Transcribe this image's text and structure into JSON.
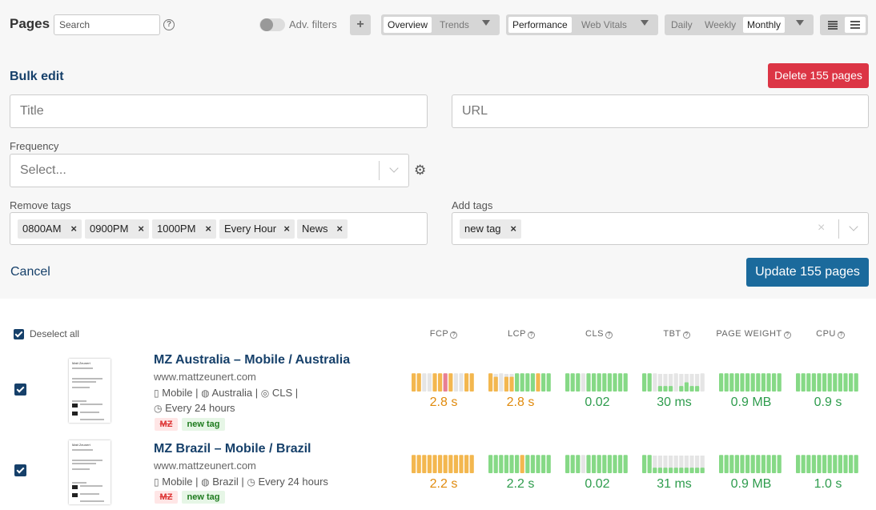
{
  "header": {
    "title": "Pages",
    "search_placeholder": "Search",
    "help_glyph": "?",
    "adv_filters_label": "Adv. filters",
    "add_glyph": "+",
    "view_tabs": [
      "Overview",
      "Trends"
    ],
    "metric_tabs": [
      "Performance",
      "Web Vitals"
    ],
    "period_tabs": [
      "Daily",
      "Weekly",
      "Monthly"
    ],
    "active": {
      "view": "Overview",
      "metric": "Performance",
      "period": "Monthly"
    }
  },
  "bulk_edit": {
    "title": "Bulk edit",
    "delete_label": "Delete 155 pages",
    "title_placeholder": "Title",
    "url_placeholder": "URL",
    "frequency_label": "Frequency",
    "frequency_placeholder": "Select...",
    "remove_tags_label": "Remove tags",
    "remove_tags": [
      "0800AM",
      "0900PM",
      "1000PM",
      "Every Hour",
      "News"
    ],
    "add_tags_label": "Add tags",
    "add_tags": [
      "new tag"
    ],
    "remove_glyph": "×",
    "cancel_label": "Cancel",
    "update_label": "Update 155 pages"
  },
  "list": {
    "deselect_label": "Deselect all",
    "columns": [
      "FCP",
      "LCP",
      "CLS",
      "TBT",
      "PAGE WEIGHT",
      "CPU"
    ],
    "colors": {
      "good": "#86d986",
      "warn": "#f3b74f",
      "bad": "#e87f92",
      "empty": "#e5e5e5",
      "good_text": "#2e9c4d",
      "warn_text": "#e08a0c"
    },
    "pages": [
      {
        "name": "MZ Australia – Mobile / Australia",
        "url": "www.mattzeunert.com",
        "device": "Mobile",
        "location": "Australia",
        "extra": "CLS",
        "frequency": "Every 24 hours",
        "badges": [
          "MZ",
          "new tag"
        ],
        "metrics": [
          {
            "value": "2.8 s",
            "status": "warn",
            "bars": [
              [
                "warn",
                0.9
              ],
              [
                "warn",
                0.9
              ],
              [
                "empty",
                0.9
              ],
              [
                "empty",
                0.9
              ],
              [
                "warn",
                0.9
              ],
              [
                "warn",
                0.9
              ],
              [
                "bad",
                0.9
              ],
              [
                "warn",
                0.9
              ],
              [
                "empty",
                0.9
              ],
              [
                "empty",
                0.9
              ],
              [
                "warn",
                0.9
              ],
              [
                "warn",
                0.9
              ]
            ]
          },
          {
            "value": "2.8 s",
            "status": "warn",
            "bars": [
              [
                "warn",
                0.9
              ],
              [
                "warn",
                0.8
              ],
              [
                "empty",
                0.9
              ],
              [
                "warn",
                0.8
              ],
              [
                "warn",
                0.8
              ],
              [
                "good",
                0.9
              ],
              [
                "good",
                0.9
              ],
              [
                "good",
                0.9
              ],
              [
                "good",
                0.9
              ],
              [
                "warn",
                0.9
              ],
              [
                "good",
                0.9
              ],
              [
                "good",
                0.9
              ]
            ]
          },
          {
            "value": "0.02",
            "status": "good",
            "bars": [
              [
                "good",
                0.9
              ],
              [
                "good",
                0.9
              ],
              [
                "good",
                0.9
              ],
              [
                "empty",
                0.9
              ],
              [
                "good",
                0.9
              ],
              [
                "good",
                0.9
              ],
              [
                "good",
                0.9
              ],
              [
                "good",
                0.9
              ],
              [
                "good",
                0.9
              ],
              [
                "good",
                0.9
              ],
              [
                "good",
                0.9
              ],
              [
                "good",
                0.9
              ]
            ]
          },
          {
            "value": "30 ms",
            "status": "good",
            "bars": [
              [
                "good",
                0.9
              ],
              [
                "good",
                0.9
              ],
              [
                "empty",
                0.9
              ],
              [
                "good",
                0.3
              ],
              [
                "good",
                0.3
              ],
              [
                "good",
                0.3
              ],
              [
                "empty",
                0.9
              ],
              [
                "good",
                0.3
              ],
              [
                "good",
                0.5
              ],
              [
                "good",
                0.3
              ],
              [
                "good",
                0.3
              ],
              [
                "empty",
                0.9
              ]
            ]
          },
          {
            "value": "0.9 MB",
            "status": "good",
            "bars": [
              [
                "good",
                0.9
              ],
              [
                "good",
                0.9
              ],
              [
                "good",
                0.9
              ],
              [
                "good",
                0.9
              ],
              [
                "good",
                0.9
              ],
              [
                "good",
                0.9
              ],
              [
                "good",
                0.9
              ],
              [
                "good",
                0.9
              ],
              [
                "good",
                0.9
              ],
              [
                "good",
                0.9
              ],
              [
                "good",
                0.9
              ],
              [
                "good",
                0.9
              ]
            ]
          },
          {
            "value": "0.9 s",
            "status": "good",
            "bars": [
              [
                "good",
                0.9
              ],
              [
                "good",
                0.9
              ],
              [
                "good",
                0.9
              ],
              [
                "good",
                0.9
              ],
              [
                "good",
                0.9
              ],
              [
                "good",
                0.9
              ],
              [
                "good",
                0.9
              ],
              [
                "good",
                0.9
              ],
              [
                "good",
                0.9
              ],
              [
                "good",
                0.9
              ],
              [
                "good",
                0.9
              ],
              [
                "good",
                0.9
              ]
            ]
          }
        ],
        "thumb_title": "Matt Zeunert"
      },
      {
        "name": "MZ Brazil – Mobile / Brazil",
        "url": "www.mattzeunert.com",
        "device": "Mobile",
        "location": "Brazil",
        "frequency": "Every 24 hours",
        "badges": [
          "MZ",
          "new tag"
        ],
        "metrics": [
          {
            "value": "2.2 s",
            "status": "warn",
            "bars": [
              [
                "warn",
                0.9
              ],
              [
                "warn",
                0.9
              ],
              [
                "warn",
                0.9
              ],
              [
                "warn",
                0.9
              ],
              [
                "warn",
                0.9
              ],
              [
                "warn",
                0.9
              ],
              [
                "warn",
                0.9
              ],
              [
                "warn",
                0.9
              ],
              [
                "warn",
                0.9
              ],
              [
                "warn",
                0.9
              ],
              [
                "warn",
                0.9
              ],
              [
                "warn",
                0.9
              ]
            ]
          },
          {
            "value": "2.2 s",
            "status": "good",
            "bars": [
              [
                "good",
                0.9
              ],
              [
                "good",
                0.9
              ],
              [
                "good",
                0.9
              ],
              [
                "good",
                0.9
              ],
              [
                "good",
                0.9
              ],
              [
                "good",
                0.9
              ],
              [
                "warn",
                0.9
              ],
              [
                "good",
                0.9
              ],
              [
                "good",
                0.9
              ],
              [
                "good",
                0.9
              ],
              [
                "good",
                0.9
              ],
              [
                "good",
                0.9
              ]
            ]
          },
          {
            "value": "0.02",
            "status": "good",
            "bars": [
              [
                "good",
                0.9
              ],
              [
                "good",
                0.9
              ],
              [
                "good",
                0.9
              ],
              [
                "empty",
                0.9
              ],
              [
                "good",
                0.9
              ],
              [
                "good",
                0.9
              ],
              [
                "good",
                0.9
              ],
              [
                "good",
                0.9
              ],
              [
                "good",
                0.9
              ],
              [
                "good",
                0.9
              ],
              [
                "good",
                0.9
              ],
              [
                "good",
                0.9
              ]
            ]
          },
          {
            "value": "31 ms",
            "status": "good",
            "bars": [
              [
                "good",
                0.9
              ],
              [
                "good",
                0.9
              ],
              [
                "good",
                0.3
              ],
              [
                "good",
                0.3
              ],
              [
                "good",
                0.3
              ],
              [
                "good",
                0.3
              ],
              [
                "good",
                0.3
              ],
              [
                "good",
                0.3
              ],
              [
                "good",
                0.3
              ],
              [
                "good",
                0.3
              ],
              [
                "good",
                0.3
              ],
              [
                "good",
                0.3
              ]
            ]
          },
          {
            "value": "0.9 MB",
            "status": "good",
            "bars": [
              [
                "good",
                0.9
              ],
              [
                "good",
                0.9
              ],
              [
                "good",
                0.9
              ],
              [
                "good",
                0.9
              ],
              [
                "good",
                0.9
              ],
              [
                "good",
                0.9
              ],
              [
                "good",
                0.9
              ],
              [
                "good",
                0.9
              ],
              [
                "good",
                0.9
              ],
              [
                "good",
                0.9
              ],
              [
                "good",
                0.9
              ],
              [
                "good",
                0.9
              ]
            ]
          },
          {
            "value": "1.0 s",
            "status": "good",
            "bars": [
              [
                "good",
                0.9
              ],
              [
                "good",
                0.9
              ],
              [
                "good",
                0.9
              ],
              [
                "good",
                0.9
              ],
              [
                "good",
                0.9
              ],
              [
                "good",
                0.9
              ],
              [
                "good",
                0.9
              ],
              [
                "good",
                0.9
              ],
              [
                "good",
                0.9
              ],
              [
                "good",
                0.9
              ],
              [
                "good",
                0.9
              ],
              [
                "good",
                0.9
              ]
            ]
          }
        ],
        "thumb_title": "Matt Zeunert"
      }
    ]
  }
}
